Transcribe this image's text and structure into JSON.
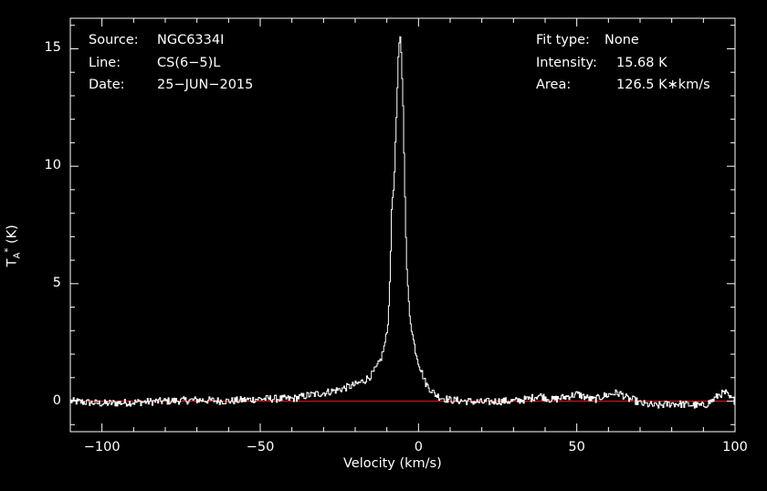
{
  "header": {
    "left": [
      {
        "key": "Source:",
        "value": "NGC6334I"
      },
      {
        "key": "Line:",
        "value": "CS(6−5)L"
      },
      {
        "key": "Date:",
        "value": "25−JUN−2015"
      }
    ],
    "right": [
      {
        "key": "Fit type:",
        "value": "None"
      },
      {
        "key": "Intensity:",
        "value": "15.68 K"
      },
      {
        "key": "Area:",
        "value": "126.5 K∗km/s"
      }
    ]
  },
  "colors": {
    "background": "#000000",
    "foreground": "#ffffff",
    "baseline": "#e01818"
  },
  "chart_data": {
    "type": "line",
    "xlabel": "Velocity (km/s)",
    "ylabel_base": "T",
    "ylabel_sub": "A",
    "ylabel_sup": "*",
    "ylabel_unit": " (K)",
    "xlim": [
      -110,
      100
    ],
    "ylim": [
      -1.3,
      16.3
    ],
    "xticks": [
      -100,
      -50,
      0,
      50,
      100
    ],
    "xtick_labels": [
      "−100",
      "−50",
      "0",
      "50",
      "100"
    ],
    "yticks": [
      0,
      5,
      10,
      15
    ],
    "ytick_labels": [
      "0",
      "5",
      "10",
      "15"
    ],
    "baseline": 0,
    "grid": false,
    "series": [
      {
        "x": [
          -110,
          -100,
          -90,
          -80,
          -70,
          -60,
          -50,
          -40,
          -35,
          -30,
          -25,
          -20,
          -17,
          -15,
          -13,
          -12,
          -11,
          -10,
          -9.5,
          -9,
          -8.5,
          -8,
          -7.5,
          -7,
          -6.5,
          -6,
          -5.5,
          -5,
          -4.5,
          -4,
          -3.5,
          -3,
          -2.5,
          -2,
          -1,
          0,
          1,
          2,
          3,
          4,
          5,
          7,
          10,
          15,
          20,
          25,
          30,
          35,
          38,
          42,
          47,
          50,
          52,
          55,
          58,
          62,
          64,
          66,
          68,
          70,
          75,
          80,
          85,
          90,
          93,
          95,
          97,
          98,
          100
        ],
        "y": [
          0.0,
          -0.1,
          -0.05,
          0.0,
          0.05,
          0.0,
          0.1,
          0.1,
          0.25,
          0.35,
          0.5,
          0.7,
          0.9,
          1.1,
          1.5,
          1.8,
          2.3,
          3.0,
          4.0,
          6.0,
          8.5,
          9.0,
          10.5,
          12.5,
          14.5,
          15.6,
          14.7,
          12.5,
          9.5,
          6.2,
          4.8,
          3.8,
          3.3,
          2.8,
          2.1,
          1.6,
          1.2,
          0.8,
          0.6,
          0.45,
          0.3,
          0.15,
          0.05,
          0.0,
          -0.05,
          0.0,
          0.0,
          0.1,
          0.25,
          0.05,
          0.2,
          0.3,
          0.2,
          0.05,
          0.2,
          0.35,
          0.3,
          0.1,
          0.05,
          -0.1,
          -0.2,
          -0.1,
          -0.15,
          -0.2,
          0.05,
          0.3,
          0.35,
          0.15,
          0.0
        ]
      }
    ]
  }
}
